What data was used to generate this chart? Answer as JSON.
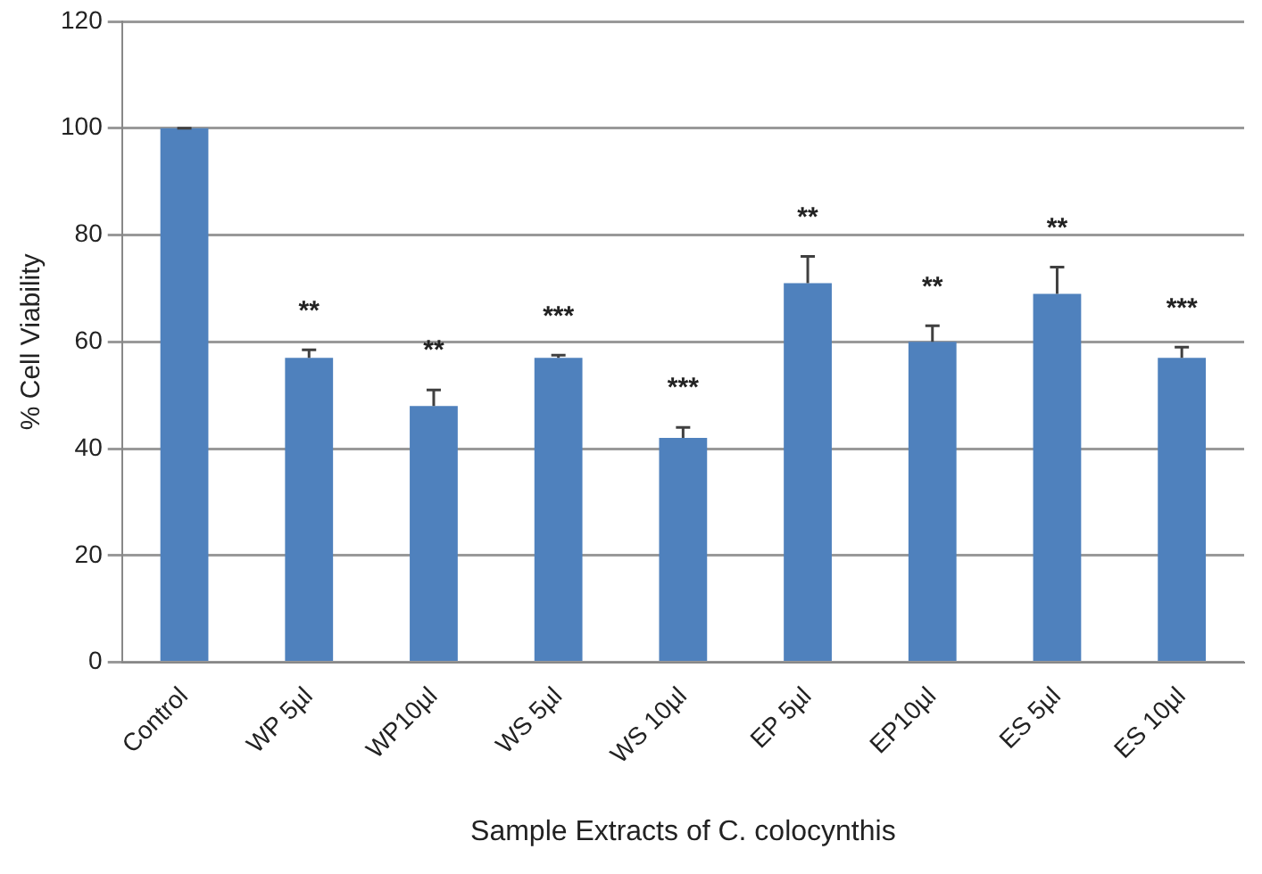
{
  "chart_data": {
    "type": "bar",
    "xlabel": "Sample Extracts of C. colocynthis",
    "ylabel": "% Cell Viability",
    "categories": [
      "Control",
      "WP 5µl",
      "WP10µl",
      "WS 5µl",
      "WS 10µl",
      "EP 5µl",
      "EP10µl",
      "ES 5µl",
      "ES 10µl"
    ],
    "values": [
      100,
      57,
      48,
      57,
      42,
      71,
      60,
      69,
      57
    ],
    "errors": [
      0,
      1.5,
      3,
      0.5,
      2,
      5,
      3,
      5,
      2
    ],
    "color": "#4f81bd",
    "ylim": [
      0,
      120
    ],
    "yticks": [
      0,
      20,
      40,
      60,
      80,
      100,
      120
    ],
    "grid": "y",
    "legend": false,
    "annotations": [
      "**",
      "**",
      "***",
      "***",
      "**",
      "**",
      "**",
      "***"
    ]
  }
}
